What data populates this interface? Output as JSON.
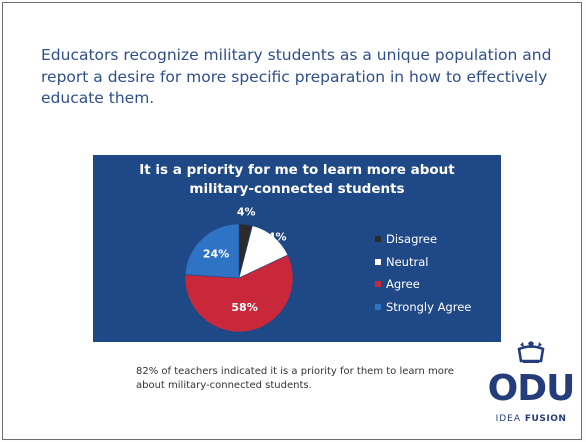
{
  "slide": {
    "headline": "Educators recognize military students as a unique population and report a desire for more specific preparation in how to effectively educate them.",
    "caption": "82% of teachers indicated it is a priority for them to learn more about military-connected students."
  },
  "logo": {
    "name": "ODU",
    "tagline_prefix": "IDEA",
    "tagline_bold": "FUSION",
    "color": "#243d7a",
    "icon": "crown-icon"
  },
  "colors": {
    "chart_background": "#1f4886",
    "headline_text": "#2f4f8a"
  },
  "chart_data": {
    "type": "pie",
    "title": "It is a priority for me to learn more about\nmilitary-connected students",
    "categories": [
      "Disagree",
      "Neutral",
      "Agree",
      "Strongly Agree"
    ],
    "values": [
      4,
      14,
      58,
      24
    ],
    "labels": [
      "4%",
      "14%",
      "58%",
      "24%"
    ],
    "colors": [
      "#2b2b2b",
      "#ffffff",
      "#c8283a",
      "#2e73c4"
    ],
    "start_angle_deg": 0,
    "direction": "clockwise",
    "legend_position": "right"
  }
}
